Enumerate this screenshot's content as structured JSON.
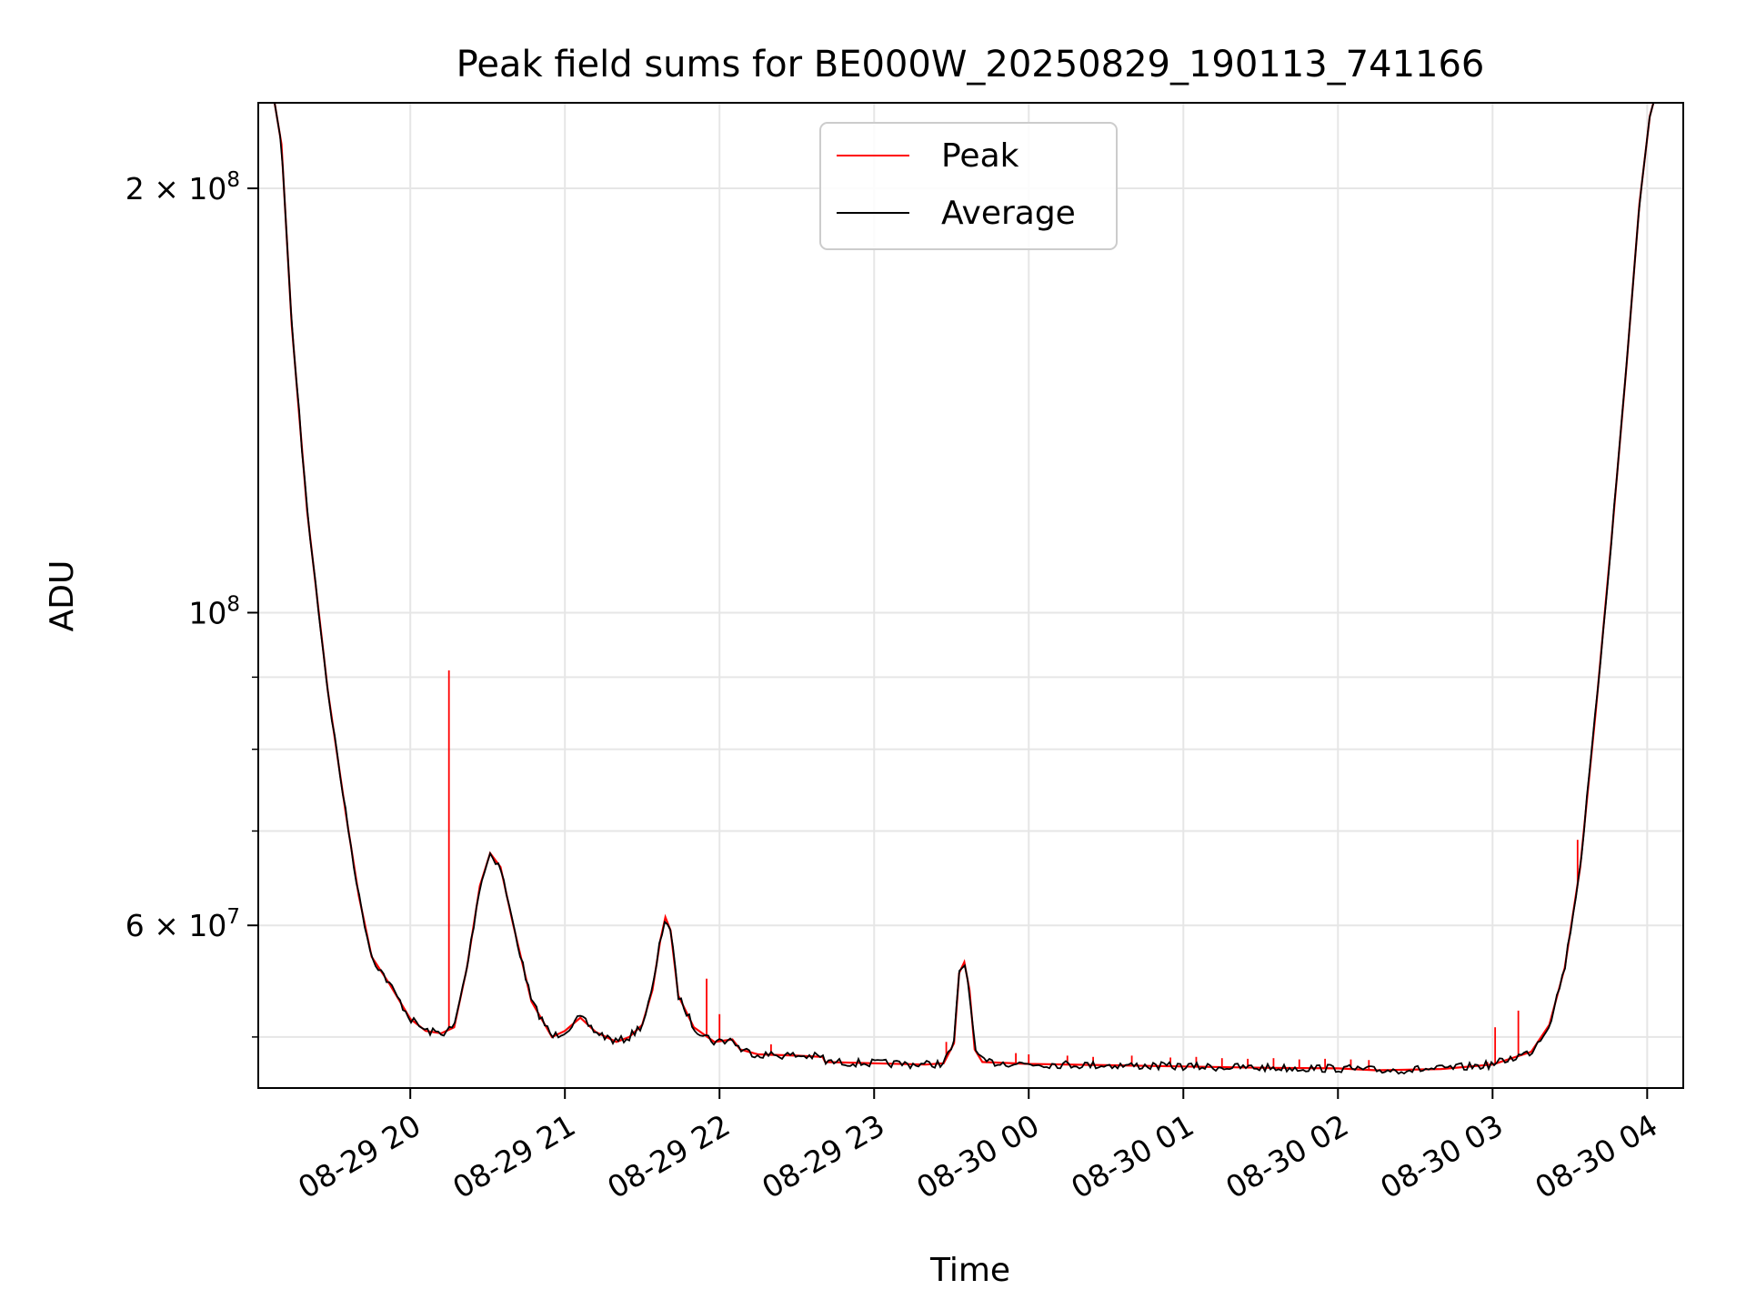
{
  "chart_data": {
    "type": "line",
    "title": "Peak field sums for BE000W_20250829_190113_741166",
    "xlabel": "Time",
    "ylabel": "ADU",
    "yscale": "log",
    "grid": true,
    "legend_placement": "upper center",
    "xlim": [
      "2025-08-29 19:01",
      "2025-08-30 04:14"
    ],
    "ylim": [
      46000000,
      230000000
    ],
    "x_ticks": [
      {
        "value": "2025-08-29 20:00",
        "label": "08-29 20"
      },
      {
        "value": "2025-08-29 21:00",
        "label": "08-29 21"
      },
      {
        "value": "2025-08-29 22:00",
        "label": "08-29 22"
      },
      {
        "value": "2025-08-29 23:00",
        "label": "08-29 23"
      },
      {
        "value": "2025-08-30 00:00",
        "label": "08-30 00"
      },
      {
        "value": "2025-08-30 01:00",
        "label": "08-30 01"
      },
      {
        "value": "2025-08-30 02:00",
        "label": "08-30 02"
      },
      {
        "value": "2025-08-30 03:00",
        "label": "08-30 03"
      },
      {
        "value": "2025-08-30 04:00",
        "label": "08-30 04"
      }
    ],
    "y_ticks": [
      {
        "value": 200000000,
        "base": "2 × 10",
        "exp": "8"
      },
      {
        "value": 100000000,
        "base": "10",
        "exp": "8"
      },
      {
        "value": 60000000,
        "base": "6 × 10",
        "exp": "7"
      }
    ],
    "y_minor_ticks": [
      50000000,
      70000000,
      80000000,
      90000000
    ],
    "series": [
      {
        "name": "Average",
        "color": "#000000",
        "points": [
          [
            "2025-08-29 19:01",
            232000000
          ],
          [
            "2025-08-29 19:07",
            232000000
          ],
          [
            "2025-08-29 19:10",
            215000000
          ],
          [
            "2025-08-29 19:14",
            160000000
          ],
          [
            "2025-08-29 19:20",
            118000000
          ],
          [
            "2025-08-29 19:28",
            88000000
          ],
          [
            "2025-08-29 19:35",
            72000000
          ],
          [
            "2025-08-29 19:40",
            63000000
          ],
          [
            "2025-08-29 19:45",
            57000000
          ],
          [
            "2025-08-29 19:52",
            54500000
          ],
          [
            "2025-08-29 20:00",
            51500000
          ],
          [
            "2025-08-29 20:06",
            50500000
          ],
          [
            "2025-08-29 20:12",
            50300000
          ],
          [
            "2025-08-29 20:17",
            50800000
          ],
          [
            "2025-08-29 20:22",
            56000000
          ],
          [
            "2025-08-29 20:27",
            64000000
          ],
          [
            "2025-08-29 20:31",
            67500000
          ],
          [
            "2025-08-29 20:35",
            66000000
          ],
          [
            "2025-08-29 20:40",
            60000000
          ],
          [
            "2025-08-29 20:47",
            53000000
          ],
          [
            "2025-08-29 20:55",
            50000000
          ],
          [
            "2025-08-29 21:00",
            50500000
          ],
          [
            "2025-08-29 21:06",
            51600000
          ],
          [
            "2025-08-29 21:12",
            50400000
          ],
          [
            "2025-08-29 21:20",
            49600000
          ],
          [
            "2025-08-29 21:25",
            50000000
          ],
          [
            "2025-08-29 21:30",
            51000000
          ],
          [
            "2025-08-29 21:34",
            54000000
          ],
          [
            "2025-08-29 21:37",
            58500000
          ],
          [
            "2025-08-29 21:39",
            60800000
          ],
          [
            "2025-08-29 21:41",
            59500000
          ],
          [
            "2025-08-29 21:44",
            53500000
          ],
          [
            "2025-08-29 21:50",
            50800000
          ],
          [
            "2025-08-29 21:58",
            49600000
          ],
          [
            "2025-08-29 22:05",
            49800000
          ],
          [
            "2025-08-29 22:08",
            49000000
          ],
          [
            "2025-08-29 22:15",
            48600000
          ],
          [
            "2025-08-29 22:30",
            48500000
          ],
          [
            "2025-08-29 22:40",
            48400000
          ],
          [
            "2025-08-29 22:41",
            48000000
          ],
          [
            "2025-08-29 23:00",
            47900000
          ],
          [
            "2025-08-29 23:20",
            47800000
          ],
          [
            "2025-08-29 23:27",
            47900000
          ],
          [
            "2025-08-29 23:31",
            49500000
          ],
          [
            "2025-08-29 23:33",
            55500000
          ],
          [
            "2025-08-29 23:35",
            56500000
          ],
          [
            "2025-08-29 23:37",
            54000000
          ],
          [
            "2025-08-29 23:39",
            49000000
          ],
          [
            "2025-08-29 23:42",
            48000000
          ],
          [
            "2025-08-30 00:00",
            47850000
          ],
          [
            "2025-08-30 00:30",
            47750000
          ],
          [
            "2025-08-30 01:00",
            47650000
          ],
          [
            "2025-08-30 01:30",
            47550000
          ],
          [
            "2025-08-30 02:00",
            47500000
          ],
          [
            "2025-08-30 02:15",
            47350000
          ],
          [
            "2025-08-30 02:40",
            47450000
          ],
          [
            "2025-08-30 03:00",
            47800000
          ],
          [
            "2025-08-30 03:15",
            48800000
          ],
          [
            "2025-08-30 03:22",
            51000000
          ],
          [
            "2025-08-30 03:28",
            56000000
          ],
          [
            "2025-08-30 03:34",
            66000000
          ],
          [
            "2025-08-30 03:40",
            85000000
          ],
          [
            "2025-08-30 03:46",
            112000000
          ],
          [
            "2025-08-30 03:52",
            150000000
          ],
          [
            "2025-08-30 03:57",
            195000000
          ],
          [
            "2025-08-30 04:01",
            225000000
          ],
          [
            "2025-08-30 04:03",
            232000000
          ],
          [
            "2025-08-30 04:14",
            232000000
          ]
        ]
      },
      {
        "name": "Peak",
        "color": "#ff0000",
        "spikes": [
          [
            "2025-08-29 20:15",
            91000000
          ],
          [
            "2025-08-29 21:55",
            55000000
          ],
          [
            "2025-08-29 22:00",
            51900000
          ],
          [
            "2025-08-29 22:20",
            49400000
          ],
          [
            "2025-08-29 23:28",
            49600000
          ],
          [
            "2025-08-29 23:55",
            48700000
          ],
          [
            "2025-08-30 00:00",
            48600000
          ],
          [
            "2025-08-30 00:15",
            48500000
          ],
          [
            "2025-08-30 00:25",
            48400000
          ],
          [
            "2025-08-30 00:40",
            48500000
          ],
          [
            "2025-08-30 00:55",
            48350000
          ],
          [
            "2025-08-30 01:05",
            48400000
          ],
          [
            "2025-08-30 01:15",
            48300000
          ],
          [
            "2025-08-30 01:25",
            48250000
          ],
          [
            "2025-08-30 01:35",
            48300000
          ],
          [
            "2025-08-30 01:45",
            48200000
          ],
          [
            "2025-08-30 01:55",
            48250000
          ],
          [
            "2025-08-30 02:05",
            48200000
          ],
          [
            "2025-08-30 02:12",
            48150000
          ],
          [
            "2025-08-30 02:58",
            48000000
          ],
          [
            "2025-08-30 03:01",
            50800000
          ],
          [
            "2025-08-30 03:10",
            52200000
          ],
          [
            "2025-08-30 03:33",
            69000000
          ]
        ]
      }
    ]
  }
}
